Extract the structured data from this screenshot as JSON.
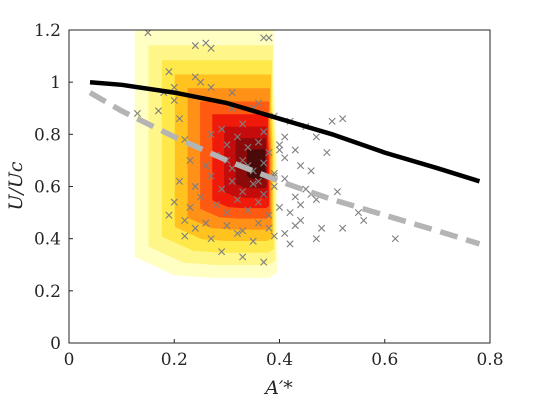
{
  "chart_data": {
    "type": "scatter",
    "title": "",
    "xlabel": "A′*",
    "ylabel": "U/Uc",
    "xlim": [
      0,
      0.8
    ],
    "ylim": [
      0,
      1.2
    ],
    "x_ticks": [
      "0",
      "0.2",
      "0.4",
      "0.6",
      "0.8"
    ],
    "y_ticks": [
      "0",
      "0.2",
      "0.4",
      "0.6",
      "0.8",
      "1",
      "1.2"
    ],
    "grid": false,
    "legend": "none",
    "density_contours": {
      "center": [
        0.37,
        0.68
      ],
      "levels": 10,
      "colors": [
        "#ffffc4",
        "#fff68a",
        "#ffe84a",
        "#ffc21f",
        "#ff9018",
        "#ff5a12",
        "#f01a0a",
        "#c40c0c",
        "#8c0a0a",
        "#4a0a0a"
      ]
    },
    "series": [
      {
        "style": "solid",
        "color": "#000000",
        "x": [
          0.04,
          0.1,
          0.2,
          0.3,
          0.4,
          0.5,
          0.6,
          0.7,
          0.78
        ],
        "y": [
          1.0,
          0.99,
          0.96,
          0.92,
          0.86,
          0.8,
          0.73,
          0.67,
          0.62
        ]
      },
      {
        "style": "dashed",
        "color": "#b4b4b4",
        "x": [
          0.04,
          0.1,
          0.2,
          0.3,
          0.4,
          0.5,
          0.6,
          0.7,
          0.78
        ],
        "y": [
          0.96,
          0.89,
          0.79,
          0.7,
          0.62,
          0.55,
          0.49,
          0.43,
          0.38
        ]
      }
    ],
    "points": {
      "marker": "x",
      "color": "#7f7f7f",
      "x": [
        0.15,
        0.24,
        0.26,
        0.27,
        0.37,
        0.38,
        0.19,
        0.2,
        0.18,
        0.2,
        0.13,
        0.17,
        0.21,
        0.29,
        0.33,
        0.35,
        0.31,
        0.36,
        0.39,
        0.42,
        0.45,
        0.22,
        0.27,
        0.3,
        0.32,
        0.34,
        0.36,
        0.38,
        0.4,
        0.43,
        0.47,
        0.5,
        0.52,
        0.23,
        0.26,
        0.28,
        0.31,
        0.33,
        0.35,
        0.37,
        0.39,
        0.41,
        0.44,
        0.46,
        0.49,
        0.21,
        0.24,
        0.27,
        0.29,
        0.31,
        0.33,
        0.35,
        0.37,
        0.39,
        0.41,
        0.43,
        0.45,
        0.2,
        0.23,
        0.25,
        0.28,
        0.3,
        0.32,
        0.34,
        0.36,
        0.38,
        0.4,
        0.42,
        0.44,
        0.47,
        0.51,
        0.55,
        0.19,
        0.22,
        0.24,
        0.26,
        0.3,
        0.33,
        0.36,
        0.38,
        0.41,
        0.44,
        0.48,
        0.22,
        0.27,
        0.32,
        0.35,
        0.39,
        0.43,
        0.47,
        0.52,
        0.56,
        0.62,
        0.29,
        0.33,
        0.37,
        0.42,
        0.36,
        0.39,
        0.34,
        0.3,
        0.4,
        0.27,
        0.25,
        0.46,
        0.31,
        0.24,
        0.37,
        0.41
      ],
      "y": [
        1.19,
        1.14,
        1.15,
        1.13,
        1.17,
        1.17,
        1.04,
        0.98,
        0.96,
        0.93,
        0.88,
        0.89,
        0.86,
        0.82,
        0.84,
        0.9,
        0.96,
        0.92,
        0.87,
        0.85,
        0.83,
        0.78,
        0.8,
        0.76,
        0.79,
        0.75,
        0.77,
        0.73,
        0.76,
        0.74,
        0.79,
        0.85,
        0.86,
        0.7,
        0.68,
        0.72,
        0.67,
        0.7,
        0.66,
        0.69,
        0.64,
        0.71,
        0.68,
        0.66,
        0.73,
        0.62,
        0.6,
        0.64,
        0.59,
        0.62,
        0.58,
        0.61,
        0.57,
        0.6,
        0.63,
        0.56,
        0.59,
        0.54,
        0.52,
        0.56,
        0.53,
        0.5,
        0.55,
        0.51,
        0.54,
        0.49,
        0.52,
        0.5,
        0.53,
        0.55,
        0.58,
        0.5,
        0.49,
        0.47,
        0.44,
        0.46,
        0.45,
        0.43,
        0.46,
        0.44,
        0.42,
        0.47,
        0.44,
        0.41,
        0.4,
        0.42,
        0.39,
        0.41,
        0.45,
        0.4,
        0.44,
        0.47,
        0.4,
        0.35,
        0.33,
        0.31,
        0.38,
        0.62,
        0.65,
        0.68,
        0.7,
        0.74,
        0.98,
        1.0,
        0.57,
        0.9,
        1.02,
        0.81,
        0.79
      ]
    }
  }
}
